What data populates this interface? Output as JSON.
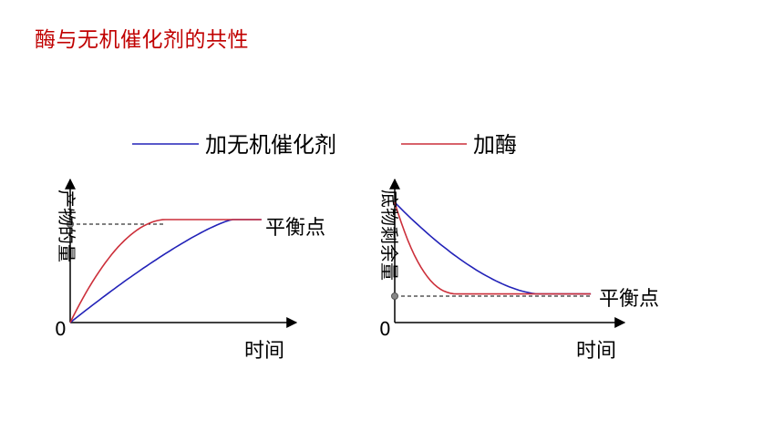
{
  "title": "酶与无机催化剂的共性",
  "legend": {
    "items": [
      {
        "name": "加无机催化剂",
        "color": "#2222b8"
      },
      {
        "name": "加酶",
        "color": "#cc2f3a"
      }
    ]
  },
  "chart_data": [
    {
      "type": "line",
      "title": "",
      "ylabel": "产物的量",
      "xlabel": "时间",
      "origin_label": "0",
      "annotation": "平衡点",
      "grid": false,
      "series": [
        {
          "name": "加无机催化剂",
          "color": "#2222b8",
          "shape": "rise",
          "reaches_plateau_at": 0.78
        },
        {
          "name": "加酶",
          "color": "#cc2f3a",
          "shape": "rise",
          "reaches_plateau_at": 0.46
        }
      ],
      "plateau_level": 0.72
    },
    {
      "type": "line",
      "title": "",
      "ylabel": "底物剩余量",
      "xlabel": "时间",
      "origin_label": "0",
      "annotation": "平衡点",
      "grid": false,
      "series": [
        {
          "name": "加无机催化剂",
          "color": "#2222b8",
          "shape": "fall",
          "reaches_plateau_at": 0.66
        },
        {
          "name": "加酶",
          "color": "#cc2f3a",
          "shape": "fall",
          "reaches_plateau_at": 0.29
        }
      ],
      "plateau_level": 0.2
    }
  ]
}
